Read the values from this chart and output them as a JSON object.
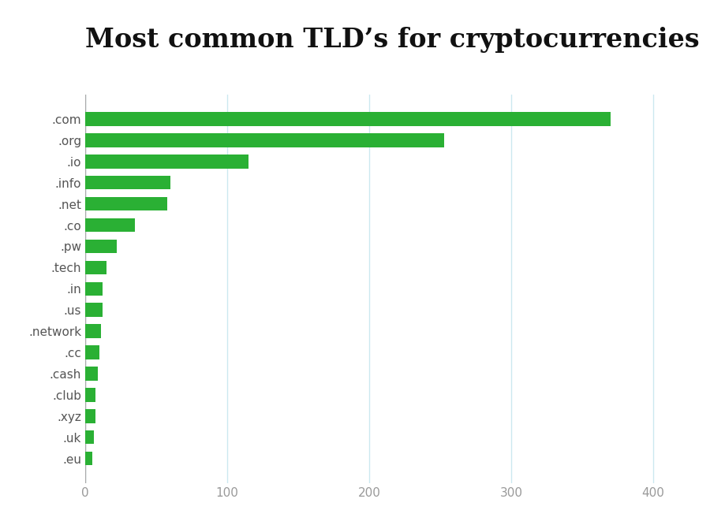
{
  "title": "Most common TLD’s for cryptocurrencies",
  "categories": [
    ".eu",
    ".uk",
    ".xyz",
    ".club",
    ".cash",
    ".cc",
    ".network",
    ".us",
    ".in",
    ".tech",
    ".pw",
    ".co",
    ".net",
    ".info",
    ".io",
    ".org",
    ".com"
  ],
  "values": [
    5,
    6,
    7,
    7,
    9,
    10,
    11,
    12,
    12,
    15,
    22,
    35,
    58,
    60,
    115,
    253,
    370
  ],
  "bar_color": "#2ab034",
  "background_color": "#ffffff",
  "grid_color": "#cce8f0",
  "tick_color": "#999999",
  "title_fontsize": 24,
  "tick_fontsize": 11,
  "xlim": [
    0,
    420
  ],
  "xticks": [
    0,
    100,
    200,
    300,
    400
  ]
}
